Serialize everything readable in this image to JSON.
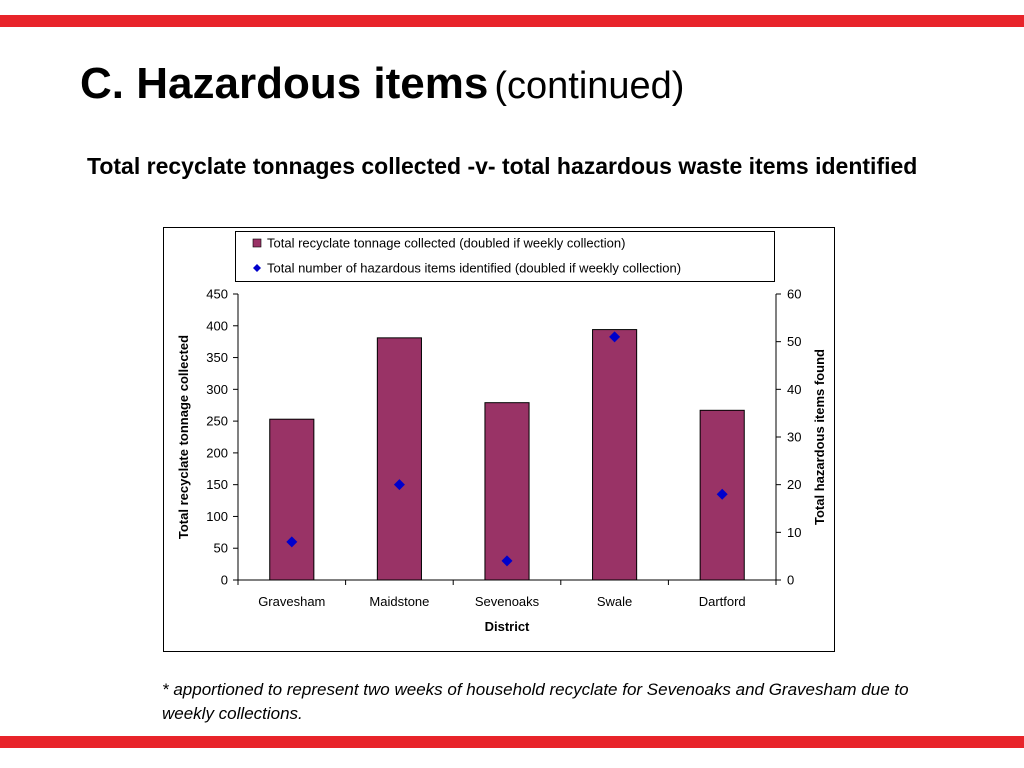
{
  "slide": {
    "title": "C. Hazardous items",
    "title_suffix": "(continued)",
    "subtitle": "Total recyclate tonnages collected -v- total hazardous waste items identified",
    "footnote": "* apportioned to represent two weeks of household recyclate for Sevenoaks and Gravesham due to weekly collections.",
    "accent_color": "#e8242a"
  },
  "chart_data": {
    "type": "bar",
    "categories": [
      "Gravesham",
      "Maidstone",
      "Sevenoaks",
      "Swale",
      "Dartford"
    ],
    "series": [
      {
        "name": "Total recyclate tonnage collected (doubled if weekly collection)",
        "type": "bar",
        "axis": "left",
        "color": "#993366",
        "values": [
          253,
          381,
          279,
          394,
          267
        ]
      },
      {
        "name": "Total number of hazardous items identified (doubled if weekly collection)",
        "type": "scatter",
        "marker": "diamond",
        "axis": "right",
        "color": "#0000cc",
        "values": [
          8,
          20,
          4,
          51,
          18
        ]
      }
    ],
    "xlabel": "District",
    "ylabel": "Total recyclate tonnage collected",
    "y2label": "Total hazardous items found",
    "ylim": [
      0,
      450
    ],
    "y2lim": [
      0,
      60
    ],
    "yticks": [
      "0",
      "50",
      "100",
      "150",
      "200",
      "250",
      "300",
      "350",
      "400",
      "450"
    ],
    "y2ticks": [
      "0",
      "10",
      "20",
      "30",
      "40",
      "50",
      "60"
    ],
    "grid": false,
    "legend_position": "top"
  }
}
